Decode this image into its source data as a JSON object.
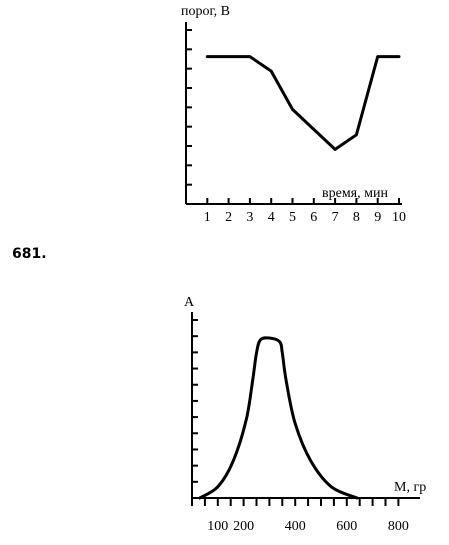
{
  "problem_number": "681.",
  "chart_data": [
    {
      "type": "line",
      "ylabel": "порог, В",
      "xlabel": "время, мин",
      "xticks": [
        "1",
        "2",
        "3",
        "4",
        "5",
        "6",
        "7",
        "8",
        "9",
        "10"
      ],
      "xlim": [
        0,
        10
      ],
      "ylim": [
        0,
        10
      ],
      "y_tick_count": 9,
      "grid": false,
      "points": [
        {
          "x": 1,
          "y": 8.1
        },
        {
          "x": 3,
          "y": 8.1
        },
        {
          "x": 4,
          "y": 7.3
        },
        {
          "x": 5,
          "y": 5.2
        },
        {
          "x": 7,
          "y": 3.0
        },
        {
          "x": 8,
          "y": 3.8
        },
        {
          "x": 9,
          "y": 8.1
        },
        {
          "x": 10,
          "y": 8.1
        }
      ]
    },
    {
      "type": "line",
      "ylabel": "A",
      "xlabel": "М, гр",
      "xticks": [
        "100",
        "200",
        "400",
        "600",
        "800"
      ],
      "xlim": [
        0,
        800
      ],
      "ylim": [
        0,
        10
      ],
      "y_tick_count": 11,
      "grid": false,
      "points": [
        {
          "x": 30,
          "y": 0.0
        },
        {
          "x": 100,
          "y": 0.6
        },
        {
          "x": 160,
          "y": 2.0
        },
        {
          "x": 210,
          "y": 4.2
        },
        {
          "x": 235,
          "y": 6.3
        },
        {
          "x": 250,
          "y": 7.8
        },
        {
          "x": 265,
          "y": 8.5
        },
        {
          "x": 300,
          "y": 8.6
        },
        {
          "x": 340,
          "y": 8.4
        },
        {
          "x": 350,
          "y": 7.8
        },
        {
          "x": 365,
          "y": 6.3
        },
        {
          "x": 400,
          "y": 4.0
        },
        {
          "x": 460,
          "y": 2.0
        },
        {
          "x": 540,
          "y": 0.6
        },
        {
          "x": 640,
          "y": 0.0
        }
      ]
    }
  ]
}
